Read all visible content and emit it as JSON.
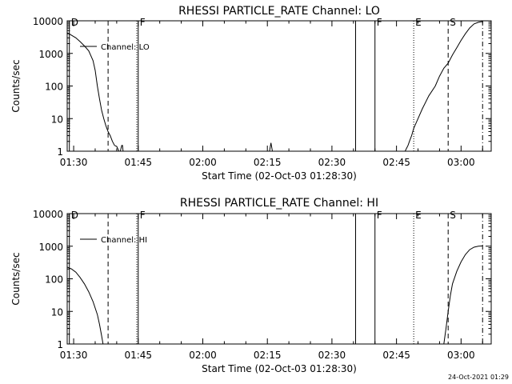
{
  "chart_data": [
    {
      "type": "line",
      "title": "RHESSI PARTICLE_RATE Channel: LO",
      "xlabel": "Start Time (02-Oct-03 01:28:30)",
      "ylabel": "Counts/sec",
      "y_scale": "log",
      "ylim": [
        1,
        10000
      ],
      "xlim": [
        "01:28:30",
        "03:07:00"
      ],
      "xticks": [
        "01:30",
        "01:45",
        "02:00",
        "02:15",
        "02:30",
        "02:45",
        "03:00"
      ],
      "yticks": [
        "1",
        "10",
        "100",
        "1000",
        "10000"
      ],
      "legend": {
        "label": "Channel: LO",
        "placement": "top-left"
      },
      "markers": [
        {
          "label": "D",
          "time": "01:29:00",
          "style": "solid"
        },
        {
          "label": "",
          "time": "01:38:00",
          "style": "dashed"
        },
        {
          "label": "",
          "time": "01:44:40",
          "style": "dotted"
        },
        {
          "label": "F",
          "time": "01:45:00",
          "style": "solid"
        },
        {
          "label": "",
          "time": "02:35:30",
          "style": "solid"
        },
        {
          "label": "F",
          "time": "02:40:00",
          "style": "solid"
        },
        {
          "label": "E",
          "time": "02:49:00",
          "style": "dotted"
        },
        {
          "label": "S",
          "time": "02:57:00",
          "style": "dashed"
        },
        {
          "label": "",
          "time": "03:05:00",
          "style": "dash-dot"
        }
      ],
      "series": [
        {
          "segments": [
            [
              [
                "01:28:30",
                4300
              ],
              [
                "01:29:30",
                3600
              ],
              [
                "01:30:30",
                3000
              ],
              [
                "01:31:30",
                2300
              ],
              [
                "01:32:30",
                1700
              ],
              [
                "01:33:30",
                1200
              ],
              [
                "01:34:30",
                600
              ],
              [
                "01:35:00",
                300
              ],
              [
                "01:35:30",
                100
              ],
              [
                "01:36:00",
                40
              ],
              [
                "01:36:30",
                18
              ],
              [
                "01:37:00",
                10
              ],
              [
                "01:37:30",
                6
              ],
              [
                "01:38:00",
                4
              ],
              [
                "01:38:30",
                3
              ],
              [
                "01:39:00",
                2
              ],
              [
                "01:39:30",
                1.5
              ],
              [
                "01:40:00",
                1.4
              ],
              [
                "01:40:30",
                1
              ]
            ],
            [
              [
                "01:40:50",
                1
              ],
              [
                "01:41:10",
                1.5
              ],
              [
                "01:41:20",
                1.5
              ],
              [
                "01:41:30",
                1
              ]
            ],
            [
              [
                "02:15:30",
                1
              ],
              [
                "02:15:50",
                1.8
              ],
              [
                "02:16:10",
                1
              ]
            ],
            [
              [
                "02:47:00",
                1
              ],
              [
                "02:47:40",
                1.5
              ],
              [
                "02:48:00",
                2
              ],
              [
                "02:48:30",
                3
              ],
              [
                "02:49:00",
                5
              ],
              [
                "02:50:00",
                10
              ],
              [
                "02:51:00",
                20
              ],
              [
                "02:52:30",
                50
              ],
              [
                "02:54:00",
                100
              ],
              [
                "02:55:00",
                200
              ],
              [
                "02:56:00",
                350
              ],
              [
                "02:57:00",
                500
              ],
              [
                "02:58:00",
                900
              ],
              [
                "02:59:00",
                1500
              ],
              [
                "03:00:00",
                2500
              ],
              [
                "03:01:00",
                4000
              ],
              [
                "03:02:00",
                6000
              ],
              [
                "03:03:00",
                8000
              ],
              [
                "03:04:00",
                9000
              ],
              [
                "03:05:00",
                9500
              ]
            ]
          ]
        }
      ]
    },
    {
      "type": "line",
      "title": "RHESSI PARTICLE_RATE Channel: HI",
      "xlabel": "Start Time (02-Oct-03 01:28:30)",
      "ylabel": "Counts/sec",
      "y_scale": "log",
      "ylim": [
        1,
        10000
      ],
      "xlim": [
        "01:28:30",
        "03:07:00"
      ],
      "xticks": [
        "01:30",
        "01:45",
        "02:00",
        "02:15",
        "02:30",
        "02:45",
        "03:00"
      ],
      "yticks": [
        "1",
        "10",
        "100",
        "1000",
        "10000"
      ],
      "legend": {
        "label": "Channel: HI",
        "placement": "top-left"
      },
      "markers": [
        {
          "label": "D",
          "time": "01:29:00",
          "style": "solid"
        },
        {
          "label": "",
          "time": "01:38:00",
          "style": "dashed"
        },
        {
          "label": "",
          "time": "01:44:40",
          "style": "dotted"
        },
        {
          "label": "F",
          "time": "01:45:00",
          "style": "solid"
        },
        {
          "label": "",
          "time": "02:35:30",
          "style": "solid"
        },
        {
          "label": "F",
          "time": "02:40:00",
          "style": "solid"
        },
        {
          "label": "E",
          "time": "02:49:00",
          "style": "dotted"
        },
        {
          "label": "S",
          "time": "02:57:00",
          "style": "dashed"
        },
        {
          "label": "",
          "time": "03:05:00",
          "style": "dash-dot"
        }
      ],
      "series": [
        {
          "segments": [
            [
              [
                "01:28:30",
                230
              ],
              [
                "01:29:30",
                200
              ],
              [
                "01:30:30",
                160
              ],
              [
                "01:31:30",
                110
              ],
              [
                "01:32:30",
                70
              ],
              [
                "01:33:30",
                40
              ],
              [
                "01:34:30",
                20
              ],
              [
                "01:35:30",
                8
              ],
              [
                "01:36:00",
                4
              ],
              [
                "01:36:30",
                1.8
              ],
              [
                "01:36:50",
                1
              ]
            ],
            [
              [
                "02:56:00",
                1
              ],
              [
                "02:56:30",
                3
              ],
              [
                "02:57:00",
                10
              ],
              [
                "02:57:30",
                30
              ],
              [
                "02:58:00",
                70
              ],
              [
                "02:59:00",
                170
              ],
              [
                "03:00:00",
                330
              ],
              [
                "03:01:00",
                550
              ],
              [
                "03:02:00",
                780
              ],
              [
                "03:03:00",
                930
              ],
              [
                "03:04:00",
                1000
              ],
              [
                "03:05:00",
                1020
              ]
            ]
          ]
        }
      ]
    }
  ],
  "footer": {
    "date_stamp": "24-Oct-2021 01:29"
  }
}
